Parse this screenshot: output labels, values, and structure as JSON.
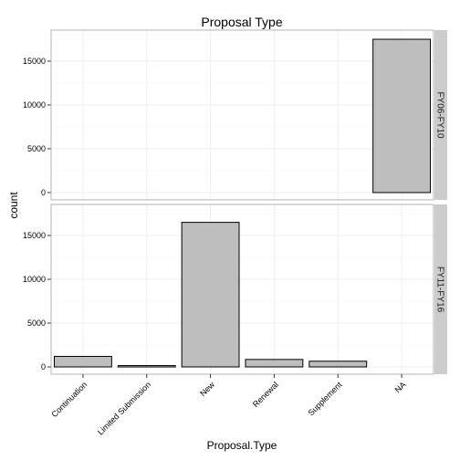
{
  "chart_data": {
    "type": "bar",
    "title": "Proposal Type",
    "xlabel": "Proposal.Type",
    "ylabel": "count",
    "categories": [
      "Continuation",
      "Limited Submission",
      "New",
      "Renewal",
      "Supplement",
      "NA"
    ],
    "ylim": [
      0,
      18000
    ],
    "yticks": [
      0,
      5000,
      10000,
      15000
    ],
    "grid": true,
    "facets": [
      {
        "label": "FY06-FY10",
        "values": [
          0,
          0,
          0,
          0,
          0,
          17500
        ]
      },
      {
        "label": "FY11-FY16",
        "values": [
          1200,
          150,
          16500,
          850,
          650,
          0
        ]
      }
    ],
    "colors": {
      "bar_fill": "#bebebe",
      "bar_stroke": "#000000",
      "strip_fill": "#cccccc",
      "grid": "#efefef",
      "panel_border": "#b3b3b3"
    }
  }
}
